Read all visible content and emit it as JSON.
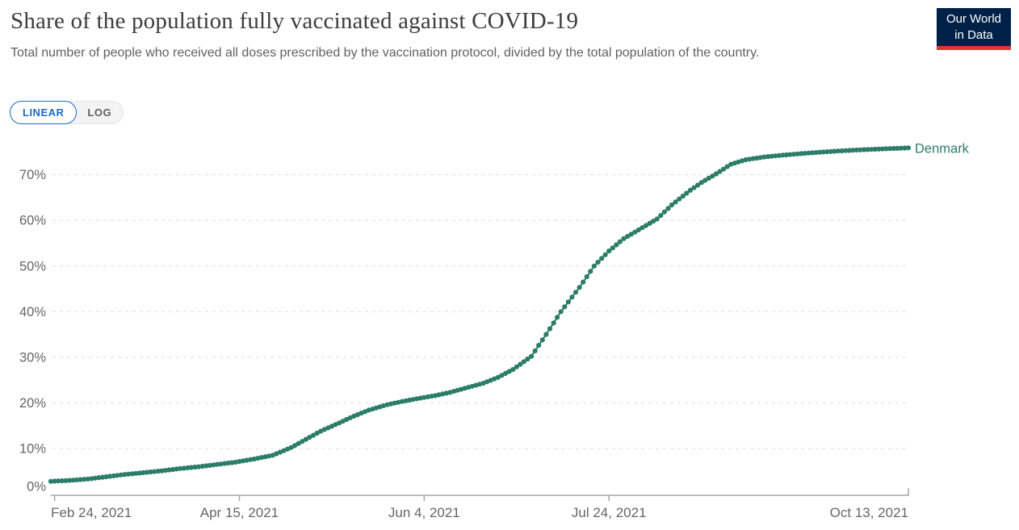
{
  "header": {
    "title": "Share of the population fully vaccinated against COVID-19",
    "subtitle": "Total number of people who received all doses prescribed by the vaccination protocol, divided by the total population of the country.",
    "logo_line1": "Our World",
    "logo_line2": "in Data"
  },
  "controls": {
    "linear_label": "LINEAR",
    "log_label": "LOG",
    "selected": "LINEAR"
  },
  "colors": {
    "series": "#2c7d68",
    "accent_blue": "#1d6cc9",
    "logo_bg": "#002147",
    "logo_red": "#d93a2e",
    "gridline": "#dddddd",
    "axis": "#a5a5a5",
    "tick_text": "#666666"
  },
  "chart_data": {
    "type": "line",
    "title": "Share of the population fully vaccinated against COVID-19",
    "xlabel": "",
    "ylabel": "",
    "y_unit": "%",
    "ylim": [
      0,
      76
    ],
    "grid": "horizontal-dashed",
    "legend_position": "end-of-line",
    "y_ticks": [
      0,
      10,
      20,
      30,
      40,
      50,
      60,
      70
    ],
    "x_ticks": [
      {
        "label": "Feb 24, 2021",
        "d": 1
      },
      {
        "label": "Apr 15, 2021",
        "d": 51
      },
      {
        "label": "Jun 4, 2021",
        "d": 101
      },
      {
        "label": "Jul 24, 2021",
        "d": 151
      },
      {
        "label": "Oct 13, 2021",
        "d": 232
      }
    ],
    "series": [
      {
        "name": "Denmark",
        "points": [
          {
            "d": 0,
            "date": "Feb 23, 2021",
            "value": 2.8
          },
          {
            "d": 5,
            "date": "Feb 28, 2021",
            "value": 3.0
          },
          {
            "d": 10,
            "date": "Mar 5, 2021",
            "value": 3.3
          },
          {
            "d": 15,
            "date": "Mar 10, 2021",
            "value": 3.8
          },
          {
            "d": 20,
            "date": "Mar 15, 2021",
            "value": 4.3
          },
          {
            "d": 25,
            "date": "Mar 20, 2021",
            "value": 4.7
          },
          {
            "d": 30,
            "date": "Mar 25, 2021",
            "value": 5.1
          },
          {
            "d": 35,
            "date": "Mar 30, 2021",
            "value": 5.6
          },
          {
            "d": 40,
            "date": "Apr 4, 2021",
            "value": 6.0
          },
          {
            "d": 45,
            "date": "Apr 9, 2021",
            "value": 6.5
          },
          {
            "d": 50,
            "date": "Apr 14, 2021",
            "value": 7.0
          },
          {
            "d": 55,
            "date": "Apr 19, 2021",
            "value": 7.7
          },
          {
            "d": 60,
            "date": "Apr 24, 2021",
            "value": 8.5
          },
          {
            "d": 65,
            "date": "Apr 29, 2021",
            "value": 10.2
          },
          {
            "d": 69,
            "date": "May 3, 2021",
            "value": 12.0
          },
          {
            "d": 73,
            "date": "May 7, 2021",
            "value": 13.8
          },
          {
            "d": 78,
            "date": "May 12, 2021",
            "value": 15.6
          },
          {
            "d": 82,
            "date": "May 16, 2021",
            "value": 17.1
          },
          {
            "d": 86,
            "date": "May 20, 2021",
            "value": 18.4
          },
          {
            "d": 91,
            "date": "May 25, 2021",
            "value": 19.6
          },
          {
            "d": 95,
            "date": "May 29, 2021",
            "value": 20.3
          },
          {
            "d": 99,
            "date": "Jun 2, 2021",
            "value": 20.9
          },
          {
            "d": 104,
            "date": "Jun 7, 2021",
            "value": 21.6
          },
          {
            "d": 108,
            "date": "Jun 11, 2021",
            "value": 22.3
          },
          {
            "d": 112,
            "date": "Jun 15, 2021",
            "value": 23.2
          },
          {
            "d": 117,
            "date": "Jun 20, 2021",
            "value": 24.3
          },
          {
            "d": 121,
            "date": "Jun 24, 2021",
            "value": 25.6
          },
          {
            "d": 125,
            "date": "Jun 28, 2021",
            "value": 27.3
          },
          {
            "d": 130,
            "date": "Jul 3, 2021",
            "value": 30.2
          },
          {
            "d": 134,
            "date": "Jul 7, 2021",
            "value": 35.0
          },
          {
            "d": 138,
            "date": "Jul 11, 2021",
            "value": 40.0
          },
          {
            "d": 143,
            "date": "Jul 16, 2021",
            "value": 45.3
          },
          {
            "d": 147,
            "date": "Jul 20, 2021",
            "value": 50.0
          },
          {
            "d": 151,
            "date": "Jul 24, 2021",
            "value": 53.3
          },
          {
            "d": 155,
            "date": "Jul 28, 2021",
            "value": 56.0
          },
          {
            "d": 160,
            "date": "Aug 2, 2021",
            "value": 58.4
          },
          {
            "d": 164,
            "date": "Aug 6, 2021",
            "value": 60.3
          },
          {
            "d": 168,
            "date": "Aug 10, 2021",
            "value": 63.4
          },
          {
            "d": 173,
            "date": "Aug 15, 2021",
            "value": 66.6
          },
          {
            "d": 176,
            "date": "Aug 18, 2021",
            "value": 68.3
          },
          {
            "d": 180,
            "date": "Aug 22, 2021",
            "value": 70.2
          },
          {
            "d": 184,
            "date": "Aug 26, 2021",
            "value": 72.3
          },
          {
            "d": 188,
            "date": "Aug 30, 2021",
            "value": 73.3
          },
          {
            "d": 193,
            "date": "Sep 4, 2021",
            "value": 73.9
          },
          {
            "d": 198,
            "date": "Sep 9, 2021",
            "value": 74.3
          },
          {
            "d": 204,
            "date": "Sep 15, 2021",
            "value": 74.7
          },
          {
            "d": 209,
            "date": "Sep 20, 2021",
            "value": 75.0
          },
          {
            "d": 215,
            "date": "Sep 26, 2021",
            "value": 75.3
          },
          {
            "d": 220,
            "date": "Oct 1, 2021",
            "value": 75.5
          },
          {
            "d": 226,
            "date": "Oct 7, 2021",
            "value": 75.7
          },
          {
            "d": 232,
            "date": "Oct 13, 2021",
            "value": 75.9
          }
        ]
      }
    ]
  }
}
